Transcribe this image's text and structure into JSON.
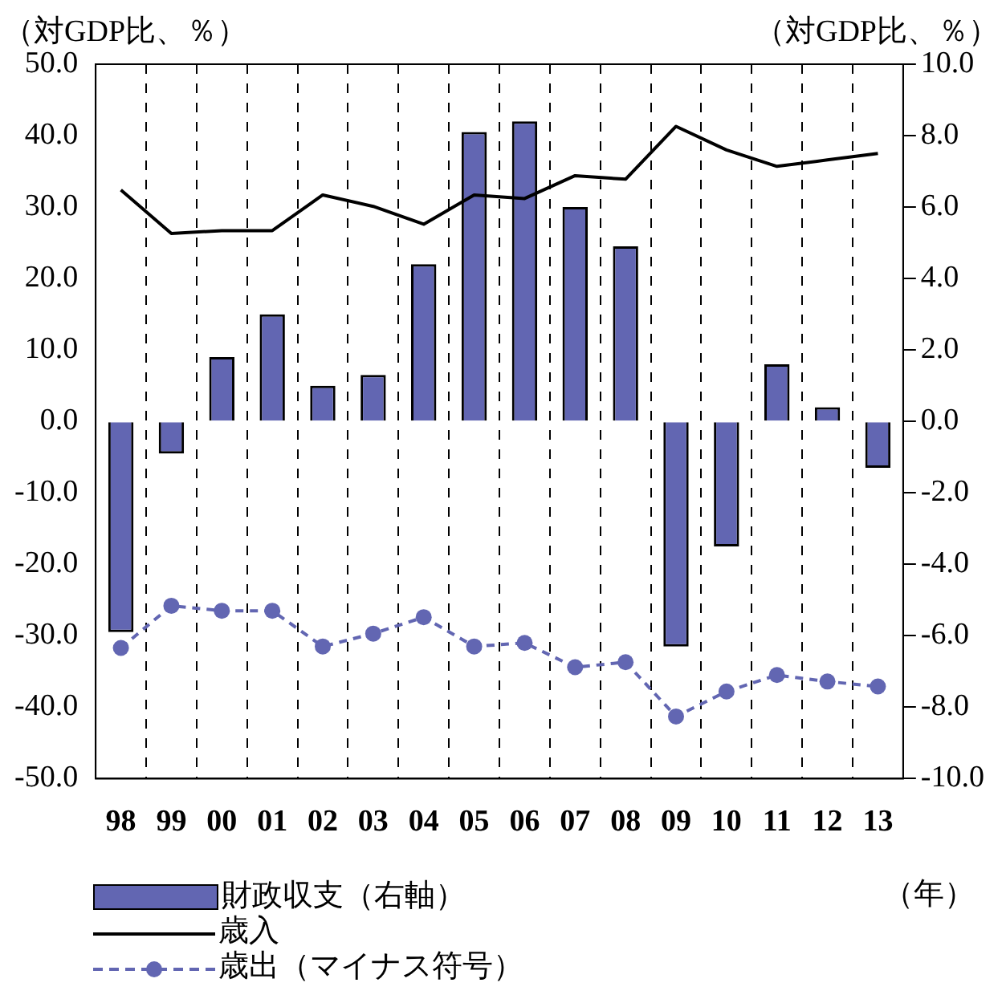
{
  "chart_data": {
    "type": "bar",
    "ylabel": "（対GDP比、％）",
    "y2label": "（対GDP比、％）",
    "xlabel": "（年）",
    "categories": [
      "98",
      "99",
      "00",
      "01",
      "02",
      "03",
      "04",
      "05",
      "06",
      "07",
      "08",
      "09",
      "10",
      "11",
      "12",
      "13"
    ],
    "series": [
      {
        "name": "財政収支（右軸）",
        "axis": "y2",
        "color": "#6266b2",
        "values": [
          -5.9,
          -0.9,
          1.8,
          3.0,
          1.0,
          1.3,
          4.4,
          8.1,
          8.4,
          6.0,
          4.9,
          -6.3,
          -3.5,
          1.6,
          0.4,
          -1.3
        ]
      },
      {
        "name": "歳入",
        "type": "line",
        "color": "#000000",
        "marker": "none",
        "line_style": "solid",
        "values": [
          32.4,
          26.3,
          26.7,
          26.7,
          31.7,
          30.1,
          27.6,
          31.7,
          31.2,
          34.4,
          33.9,
          41.3,
          38.0,
          35.7,
          36.6,
          37.5
        ]
      },
      {
        "name": "歳出（マイナス符号）",
        "type": "line",
        "color": "#6266b2",
        "marker": "circle",
        "line_style": "dashed",
        "values": [
          -31.7,
          -25.8,
          -26.5,
          -26.5,
          -31.5,
          -29.7,
          -27.4,
          -31.5,
          -31.0,
          -34.4,
          -33.7,
          -41.3,
          -37.8,
          -35.5,
          -36.4,
          -37.1
        ]
      }
    ],
    "ylim": [
      -50,
      50
    ],
    "yticks": [
      {
        "value": -50,
        "label": "-50.0"
      },
      {
        "value": -40,
        "label": "-40.0"
      },
      {
        "value": -30,
        "label": "-30.0"
      },
      {
        "value": -20,
        "label": "-20.0"
      },
      {
        "value": -10,
        "label": "-10.0"
      },
      {
        "value": 0,
        "label": "0.0"
      },
      {
        "value": 10,
        "label": "10.0"
      },
      {
        "value": 20,
        "label": "20.0"
      },
      {
        "value": 30,
        "label": "30.0"
      },
      {
        "value": 40,
        "label": "40.0"
      },
      {
        "value": 50,
        "label": "50.0"
      }
    ],
    "y2lim": [
      -10,
      10
    ],
    "y2ticks": [
      {
        "value": -10,
        "label": "-10.0"
      },
      {
        "value": -8,
        "label": "-8.0"
      },
      {
        "value": -6,
        "label": "-6.0"
      },
      {
        "value": -4,
        "label": "-4.0"
      },
      {
        "value": -2,
        "label": "-2.0"
      },
      {
        "value": 0,
        "label": "0.0"
      },
      {
        "value": 2,
        "label": "2.0"
      },
      {
        "value": 4,
        "label": "4.0"
      },
      {
        "value": 6,
        "label": "6.0"
      },
      {
        "value": 8,
        "label": "8.0"
      },
      {
        "value": 10,
        "label": "10.0"
      }
    ],
    "grid": "x",
    "legend": "bottom"
  }
}
